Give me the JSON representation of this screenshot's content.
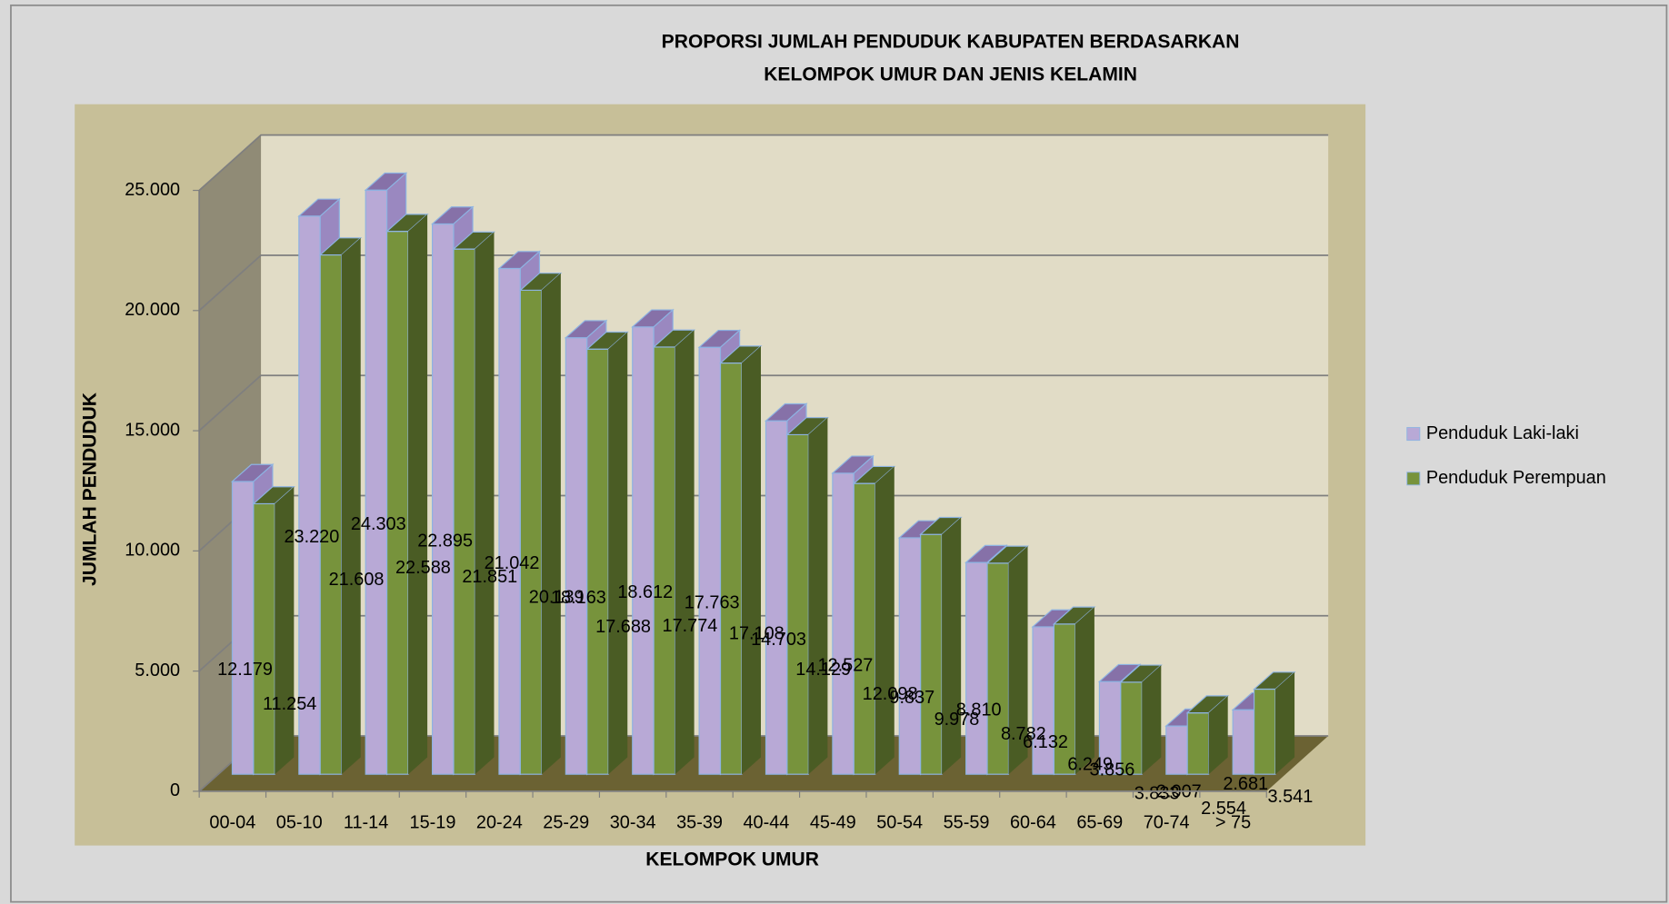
{
  "chart_data": {
    "type": "bar3d",
    "title": [
      "PROPORSI JUMLAH PENDUDUK KABUPATEN BERDASARKAN",
      "KELOMPOK UMUR DAN JENIS KELAMIN"
    ],
    "x_label": "KELOMPOK UMUR",
    "y_label": "JUMLAH PENDUDUK",
    "categories": [
      "00-04",
      "05-10",
      "11-14",
      "15-19",
      "20-24",
      "25-29",
      "30-34",
      "35-39",
      "40-44",
      "45-49",
      "50-54",
      "55-59",
      "60-64",
      "65-69",
      "70-74",
      "> 75"
    ],
    "series": [
      {
        "name": "Penduduk Laki-laki",
        "color": "#b8a9d6",
        "top_color": "#8671a8",
        "side_color": "#9a88c0",
        "values": [
          12179,
          23220,
          24303,
          22895,
          21042,
          18163,
          18612,
          17763,
          14703,
          12527,
          9837,
          8810,
          6132,
          3856,
          2007,
          2681
        ],
        "value_labels": [
          "12.179",
          "23.220",
          "24.303",
          "22.895",
          "21.042",
          "18.163",
          "18.612",
          "17.763",
          "14.703",
          "12.527",
          "9.837",
          "8.810",
          "6.132",
          "3.856",
          "2.007",
          "2.681"
        ]
      },
      {
        "name": "Penduduk Perempuan",
        "color": "#77933c",
        "top_color": "#4f6228",
        "side_color": "#4a5c24",
        "values": [
          11254,
          21608,
          22588,
          21851,
          20139,
          17688,
          17774,
          17108,
          14129,
          12098,
          9978,
          8782,
          6249,
          3833,
          2554,
          3541
        ],
        "value_labels": [
          "11.254",
          "21.608",
          "22.588",
          "21.851",
          "20.139",
          "17.688",
          "17.774",
          "17.108",
          "14.129",
          "12.098",
          "9.978",
          "8.782",
          "6.249",
          "3.833",
          "2.554",
          "3.541"
        ]
      }
    ],
    "ylim": [
      0,
      25000
    ],
    "yticks": [
      0,
      {
        "value": 5000,
        "label": "5.000"
      },
      {
        "value": 10000,
        "label": "10.000"
      },
      {
        "value": 15000,
        "label": "15.000"
      },
      {
        "value": 20000,
        "label": "20.000"
      },
      {
        "value": 25000,
        "label": "25.000"
      }
    ],
    "grid": true,
    "legend": "right"
  }
}
